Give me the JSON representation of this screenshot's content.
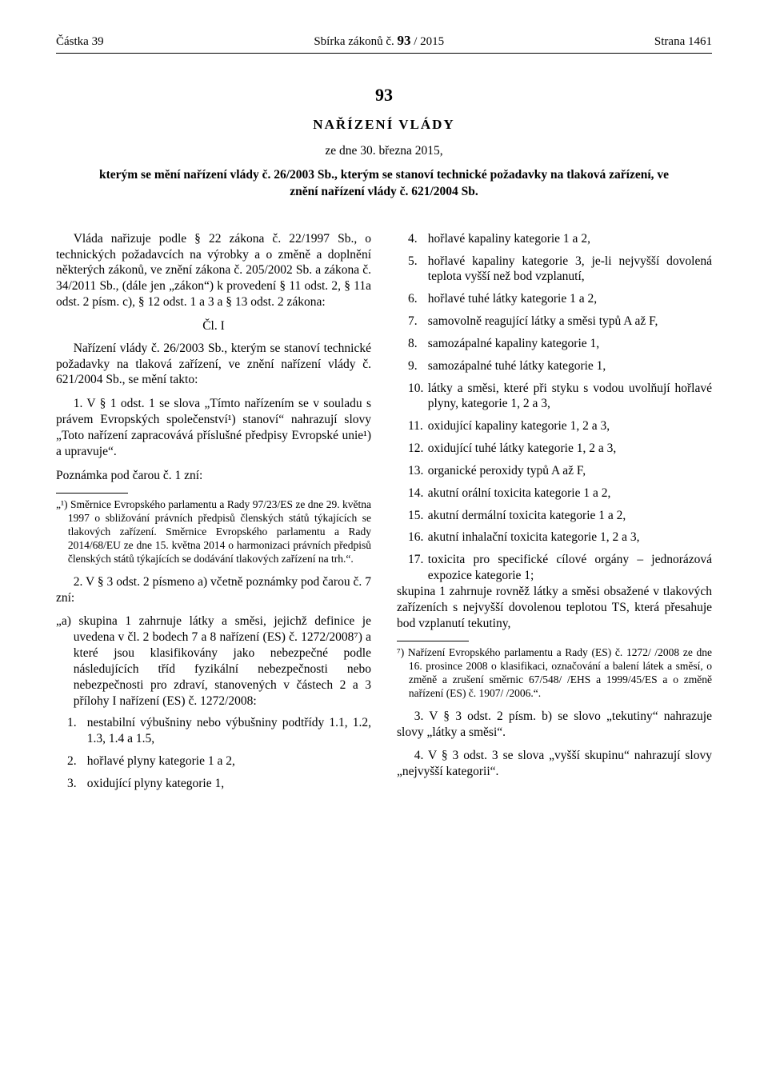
{
  "header": {
    "left": "Částka 39",
    "center_prefix": "Sbírka zákonů č. ",
    "center_bold": "93",
    "center_suffix": " / 2015",
    "right": "Strana 1461"
  },
  "doc": {
    "number": "93",
    "title": "NAŘÍZENÍ VLÁDY",
    "date": "ze dne 30. března 2015,",
    "subject": "kterým se mění nařízení vlády č. 26/2003 Sb., kterým se stanoví technické požadavky na tlaková zařízení, ve znění nařízení vlády č. 621/2004 Sb."
  },
  "intro": "Vláda nařizuje podle § 22 zákona č. 22/1997 Sb., o technických požadavcích na výrobky a o změně a doplnění některých zákonů, ve znění zákona č. 205/2002 Sb. a zákona č. 34/2011 Sb., (dále jen „zákon“) k provedení § 11 odst. 2, § 11a odst. 2 písm. c), § 12 odst. 1 a 3 a § 13 odst. 2 zákona:",
  "article_label": "Čl. I",
  "article_intro": "Nařízení vlády č. 26/2003 Sb., kterým se stanoví technické požadavky na tlaková zařízení, ve znění nařízení vlády č. 621/2004 Sb., se mění takto:",
  "point1": "1. V § 1 odst. 1 se slova „Tímto nařízením se v souladu s právem Evropských společenství¹) stanoví“ nahrazují slovy „Toto nařízení zapracovává příslušné předpisy Evropské unie¹) a upravuje“.",
  "footnote_label": "Poznámka pod čarou č. 1 zní:",
  "footnote1": "„¹) Směrnice Evropského parlamentu a Rady 97/23/ES ze dne 29. května 1997 o sbližování právních předpisů členských států týkajících se tlakových zařízení. Směrnice Evropského parlamentu a Rady 2014/68/EU ze dne 15. května 2014 o harmonizaci právních předpisů členských států týkajících se dodávání tlakových zařízení na trh.“.",
  "point2_intro": "2. V § 3 odst. 2 písmeno a) včetně poznámky pod čarou č. 7 zní:",
  "point2_a": "„a) skupina 1 zahrnuje látky a směsi, jejichž definice je uvedena v čl. 2 bodech 7 a 8 nařízení (ES) č. 1272/2008⁷) a které jsou klasifikovány jako nebezpečné podle následujících tříd fyzikální nebezpečnosti nebo nebezpečnosti pro zdraví, stanovených v částech 2 a 3 přílohy I nařízení (ES) č. 1272/2008:",
  "list": [
    {
      "n": "1.",
      "t": "nestabilní výbušniny nebo výbušniny podtřídy 1.1, 1.2, 1.3, 1.4 a 1.5,"
    },
    {
      "n": "2.",
      "t": "hořlavé plyny kategorie 1 a 2,"
    },
    {
      "n": "3.",
      "t": "oxidující plyny kategorie 1,"
    },
    {
      "n": "4.",
      "t": "hořlavé kapaliny kategorie 1 a 2,"
    },
    {
      "n": "5.",
      "t": "hořlavé kapaliny kategorie 3, je-li nejvyšší dovolená teplota vyšší než bod vzplanutí,"
    },
    {
      "n": "6.",
      "t": "hořlavé tuhé látky kategorie 1 a 2,"
    },
    {
      "n": "7.",
      "t": "samovolně reagující látky a směsi typů A až F,"
    },
    {
      "n": "8.",
      "t": "samozápalné kapaliny kategorie 1,"
    },
    {
      "n": "9.",
      "t": "samozápalné tuhé látky kategorie 1,"
    },
    {
      "n": "10.",
      "t": "látky a směsi, které při styku s vodou uvolňují hořlavé plyny, kategorie 1, 2 a 3,"
    },
    {
      "n": "11.",
      "t": "oxidující kapaliny kategorie 1, 2 a 3,"
    },
    {
      "n": "12.",
      "t": "oxidující tuhé látky kategorie 1, 2 a 3,"
    },
    {
      "n": "13.",
      "t": "organické peroxidy typů A až F,"
    },
    {
      "n": "14.",
      "t": "akutní orální toxicita kategorie 1 a 2,"
    },
    {
      "n": "15.",
      "t": "akutní dermální toxicita kategorie 1 a 2,"
    },
    {
      "n": "16.",
      "t": "akutní inhalační toxicita kategorie 1, 2 a 3,"
    },
    {
      "n": "17.",
      "t": "toxicita pro specifické cílové orgány – jednorázová expozice kategorie 1;"
    }
  ],
  "list_tail": "skupina 1 zahrnuje rovněž látky a směsi obsažené v tlakových zařízeních s nejvyšší dovolenou teplotou TS, která přesahuje bod vzplanutí tekutiny,",
  "footnote7": "⁷) Nařízení Evropského parlamentu a Rady (ES) č. 1272/ /2008 ze dne 16. prosince 2008 o klasifikaci, označování a balení látek a směsí, o změně a zrušení směrnic 67/548/ /EHS a 1999/45/ES a o změně nařízení (ES) č. 1907/ /2006.“.",
  "point3": "3. V § 3 odst. 2 písm. b) se slovo „tekutiny“ nahrazuje slovy „látky a směsi“.",
  "point4": "4. V § 3 odst. 3 se slova „vyšší skupinu“ nahrazují slovy „nejvyšší kategorii“."
}
